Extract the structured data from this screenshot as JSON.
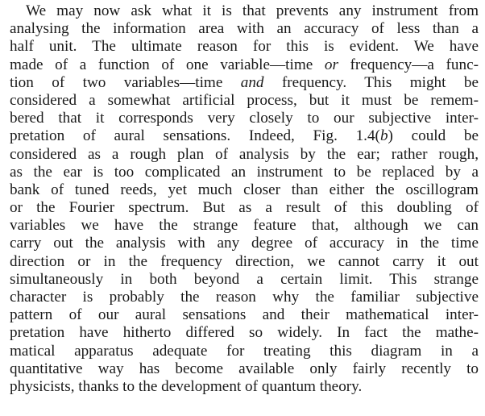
{
  "paragraph": {
    "lines": [
      [
        "We may now ask what it is that prevents any instrument from"
      ],
      [
        "analysing the information area with an accuracy of less than a"
      ],
      [
        "half unit.  The ultimate reason for this is evident.  We have"
      ],
      [
        "made of a function of one variable—time ",
        {
          "text": "or",
          "style": "italic"
        },
        " frequency—a func-"
      ],
      [
        "tion of two variables—time ",
        {
          "text": "and",
          "style": "italic"
        },
        " frequency.  This might be"
      ],
      [
        "considered a somewhat artificial process, but it must be remem-"
      ],
      [
        "bered that it corresponds very closely to our subjective inter-"
      ],
      [
        "pretation of aural sensations.  Indeed, Fig. 1.4(",
        {
          "text": "b",
          "style": "italic"
        },
        ") could be"
      ],
      [
        "considered as a rough plan of analysis by the ear; rather rough,"
      ],
      [
        "as the ear is too complicated an instrument to be replaced by a"
      ],
      [
        "bank of tuned reeds, yet much closer than either the oscillogram"
      ],
      [
        "or the Fourier spectrum.  But as a result of this doubling of"
      ],
      [
        "variables we have the strange feature that, although we can"
      ],
      [
        "carry out the analysis with any degree of accuracy in the time"
      ],
      [
        "direction or in the frequency direction, we cannot carry it out"
      ],
      [
        "simultaneously in both beyond a certain limit.  This strange"
      ],
      [
        "character is probably the reason why the familiar subjective"
      ],
      [
        "pattern of our aural sensations and their mathematical inter-"
      ],
      [
        "pretation have hitherto differed so widely.  In fact the mathe-"
      ],
      [
        "matical apparatus adequate for treating this diagram in a"
      ],
      [
        "quantitative way has become available only fairly recently to"
      ],
      [
        "physicists, thanks to the development of quantum theory."
      ]
    ]
  }
}
